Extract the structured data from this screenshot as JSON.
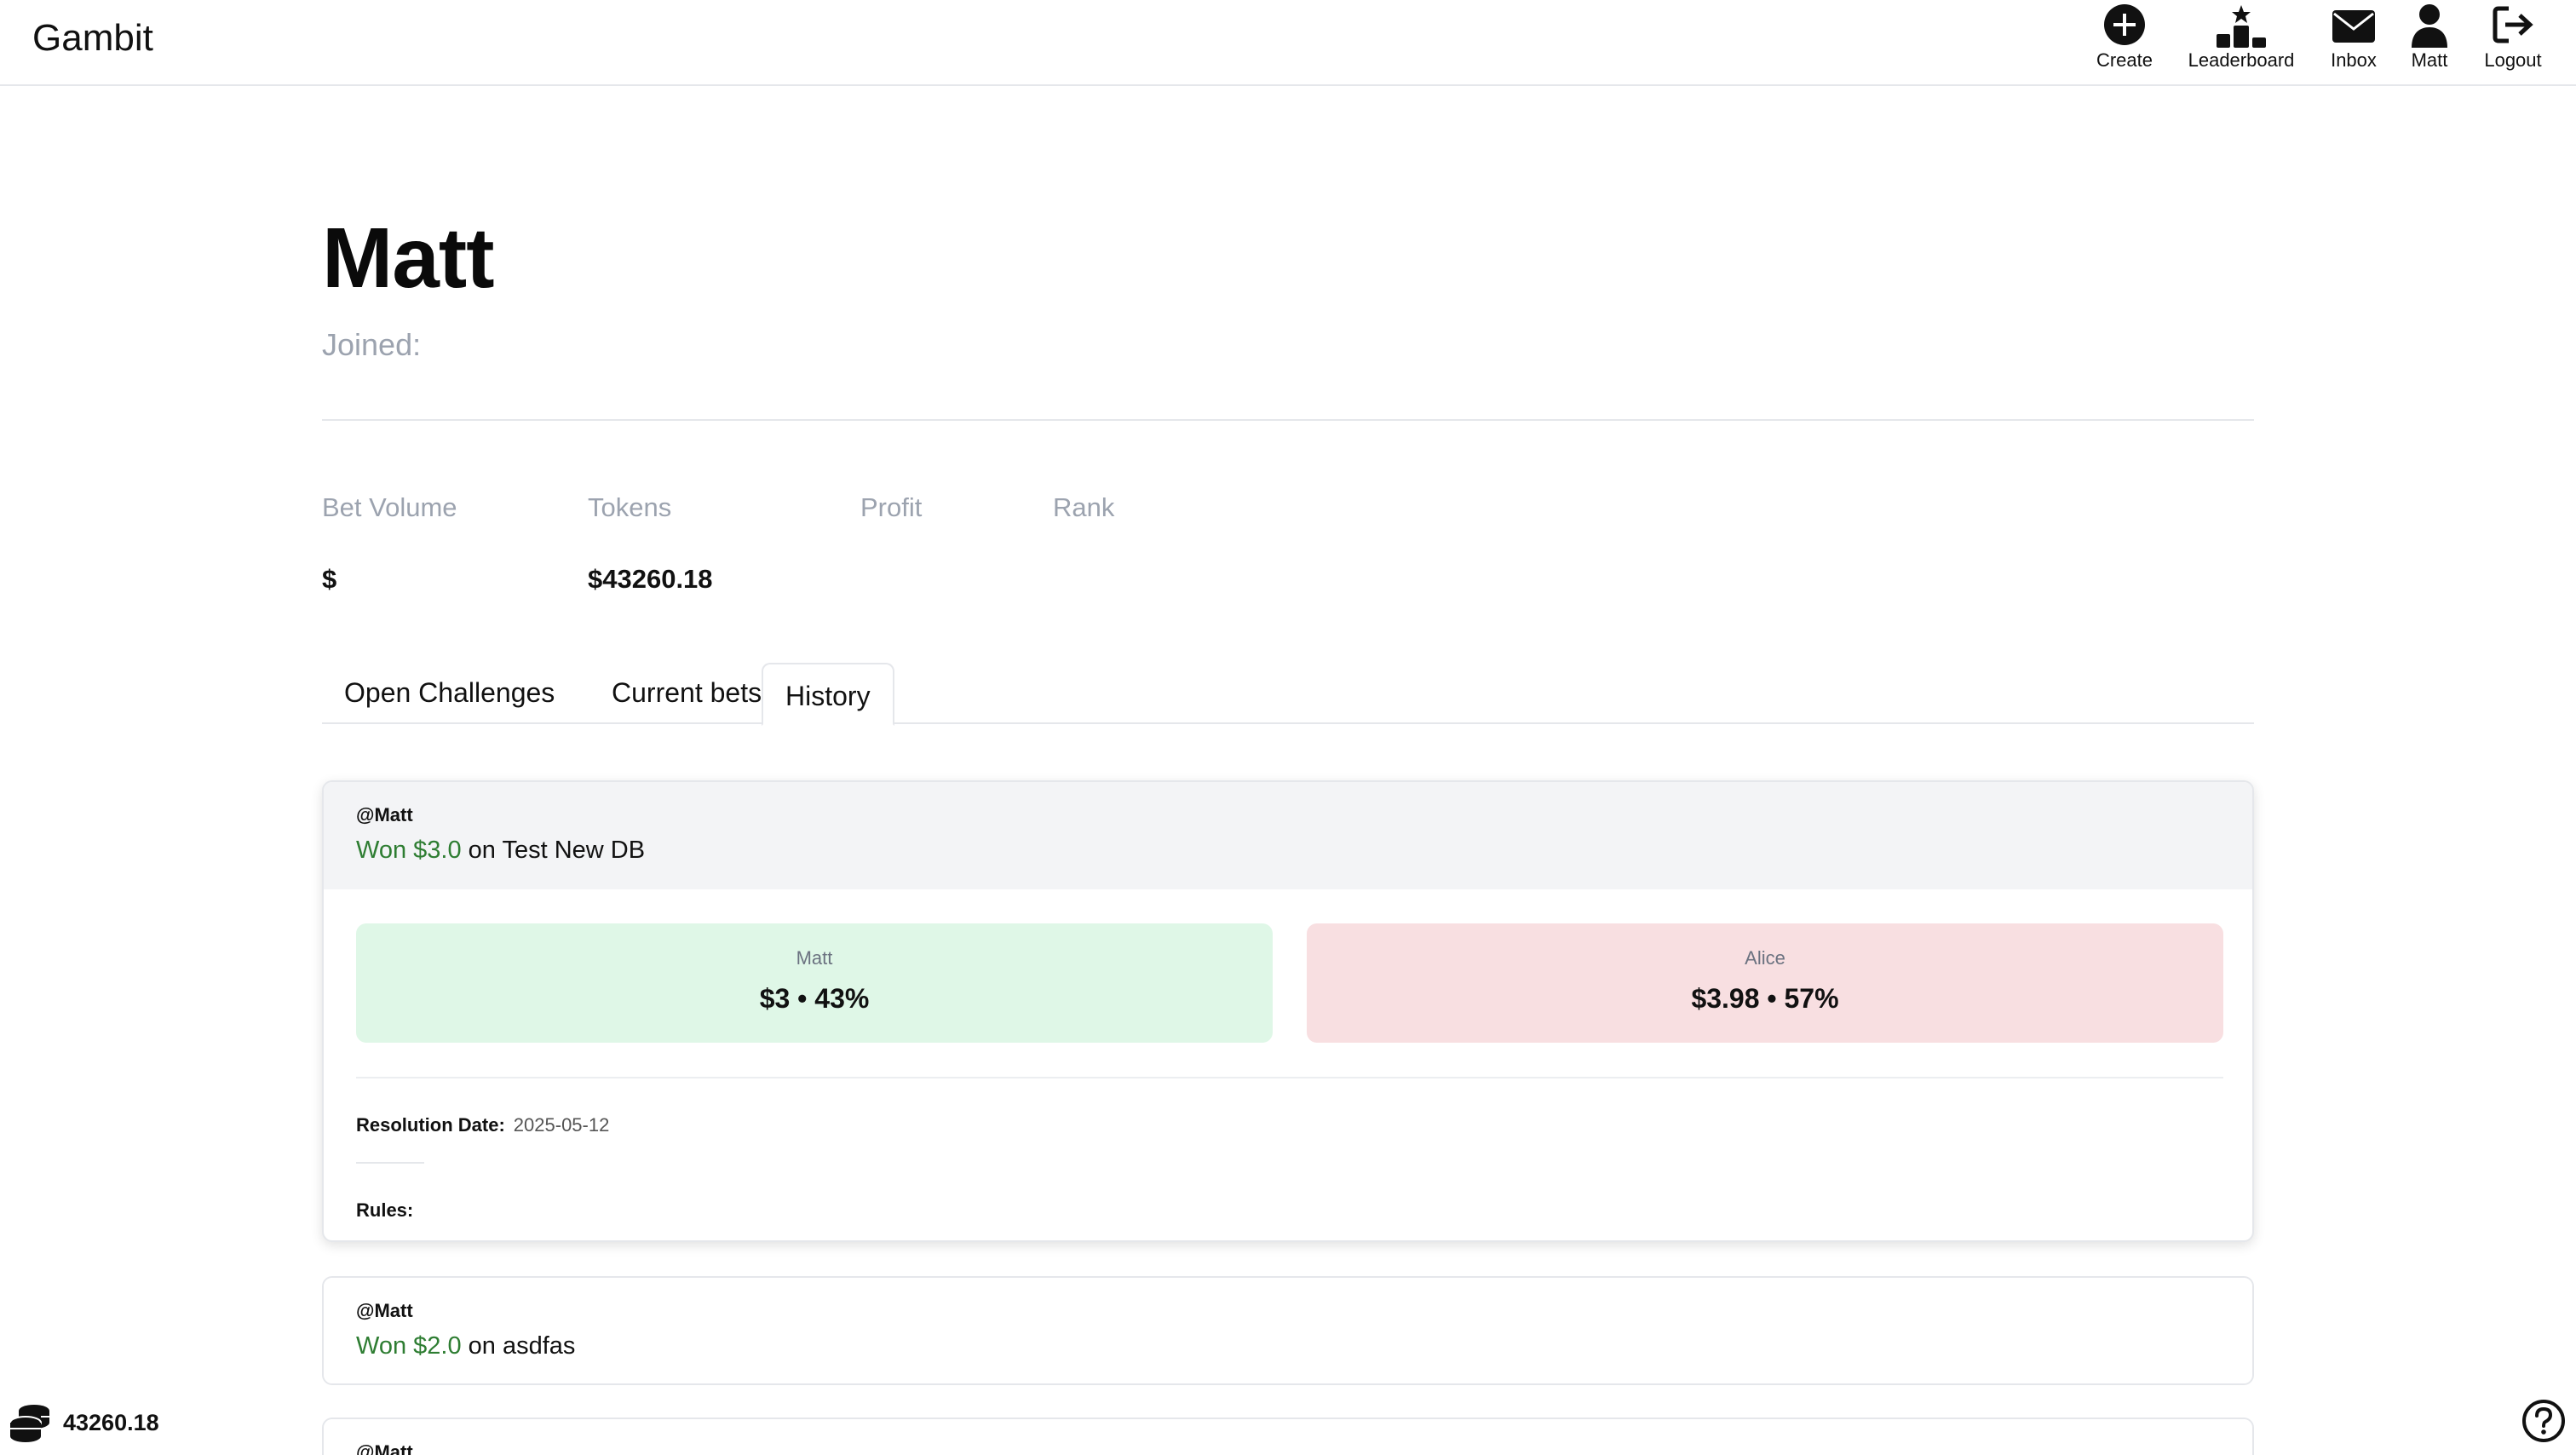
{
  "app": {
    "brand": "Gambit"
  },
  "nav": [
    {
      "label": "Create",
      "icon": "plus-circle-icon"
    },
    {
      "label": "Leaderboard",
      "icon": "podium-icon"
    },
    {
      "label": "Inbox",
      "icon": "envelope-icon"
    },
    {
      "label": "Matt",
      "icon": "user-icon"
    },
    {
      "label": "Logout",
      "icon": "logout-icon"
    }
  ],
  "profile": {
    "name": "Matt",
    "joined_label": "Joined:",
    "stats": {
      "bet_volume": {
        "label": "Bet Volume",
        "value": "$"
      },
      "tokens": {
        "label": "Tokens",
        "value": "$43260.18"
      },
      "profit": {
        "label": "Profit",
        "value": ""
      },
      "rank": {
        "label": "Rank",
        "value": ""
      }
    }
  },
  "tabs": [
    {
      "label": "Open Challenges",
      "active": false
    },
    {
      "label": "Current bets",
      "active": false
    },
    {
      "label": "History",
      "active": true
    }
  ],
  "history": [
    {
      "user": "@Matt",
      "won": "Won $3.0",
      "title_rest": " on Test New DB",
      "expanded": true,
      "left_side": {
        "name": "Matt",
        "value": "$3 • 43%"
      },
      "right_side": {
        "name": "Alice",
        "value": "$3.98 • 57%"
      },
      "resolution_label": "Resolution Date:",
      "resolution_date": "2025-05-12",
      "rules_label": "Rules:"
    },
    {
      "user": "@Matt",
      "won": "Won $2.0",
      "title_rest": " on asdfas",
      "expanded": false
    },
    {
      "user": "@Matt",
      "expanded": false
    }
  ],
  "footer": {
    "token_balance": "43260.18"
  },
  "colors": {
    "won": "#2e7d32",
    "left_bg": "#dff7e7",
    "right_bg": "#f8dfe1",
    "muted": "#9ca3af"
  }
}
